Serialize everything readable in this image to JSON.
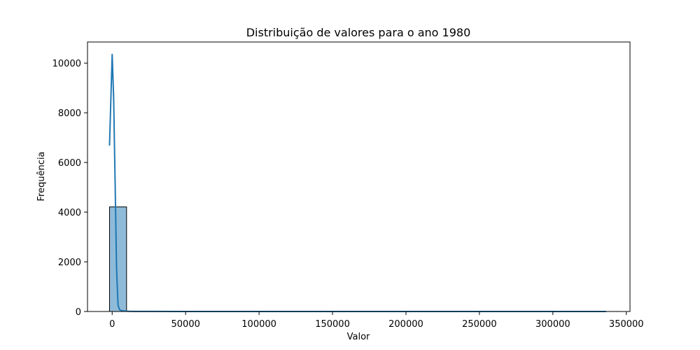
{
  "chart_data": {
    "type": "bar",
    "title": "Distribuição de valores para o ano 1980",
    "xlabel": "Valor",
    "ylabel": "Frequência",
    "xlim": [
      -16800,
      352500
    ],
    "ylim": [
      0,
      10850
    ],
    "x_ticks": [
      0,
      50000,
      100000,
      150000,
      200000,
      250000,
      300000,
      350000
    ],
    "y_ticks": [
      0,
      2000,
      4000,
      6000,
      8000,
      10000
    ],
    "grid": false,
    "histogram": {
      "bin_start": -1800,
      "bin_width": 11600,
      "counts": [
        4210,
        8,
        3,
        2,
        1,
        1,
        0,
        0,
        0,
        0,
        0,
        0,
        0,
        0,
        0,
        0,
        0,
        0,
        0,
        0,
        0,
        0,
        0,
        0,
        0,
        0,
        0,
        0,
        0,
        1
      ],
      "fill_color": "#1f77b4",
      "fill_opacity": 0.5,
      "edge_color": "#000000"
    },
    "series": [
      {
        "type": "kde",
        "color": "#1f77b4",
        "x": [
          -1800,
          0,
          1000,
          2000,
          3000,
          4000,
          5000,
          6000,
          8000,
          10000,
          15000,
          30000,
          60000,
          100000,
          200000,
          336000
        ],
        "values": [
          6700,
          10350,
          8600,
          5200,
          1700,
          250,
          80,
          40,
          20,
          10,
          5,
          2,
          1,
          0,
          0,
          0
        ]
      }
    ]
  }
}
